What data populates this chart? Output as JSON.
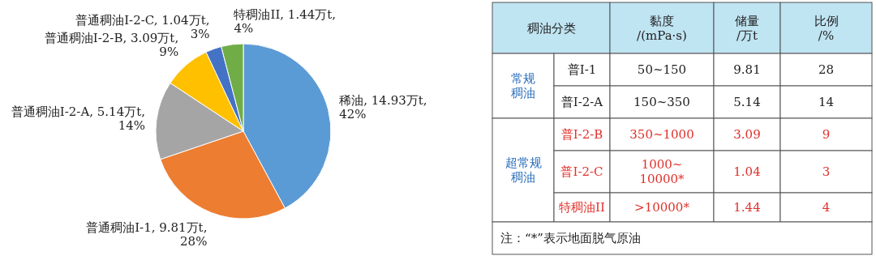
{
  "chart_data": [
    {
      "type": "pie",
      "categories": [
        "稀油",
        "普通稠油I-2-A",
        "普通稠油I-1",
        "普通稠油I-2-B",
        "普通稠油I-2-C",
        "特稠油II"
      ],
      "values": [
        14.93,
        5.14,
        9.81,
        3.09,
        1.04,
        1.44
      ],
      "value_labels": [
        ", 14.93万t, 42%",
        ", 5.14万t, 14%",
        ", 9.81万t, 28%",
        ", 3.09万t, 9%",
        ", 1.04万t, 3%",
        ", 1.44万t, 4%"
      ],
      "colors": [
        "#5b9bd5",
        "#a5a5a5",
        "#ed7d31",
        "#ffc000",
        "#4472c4",
        "#70ad47"
      ]
    },
    {
      "type": "other",
      "annotations": [
        "稠油分类",
        "黏度\n/(mPa·s)",
        "储量\n/万t",
        "比例\n/%",
        "常规稠油",
        "普I-1",
        "50~150",
        "9.81",
        "28",
        "普I-2-A",
        "150~350",
        "5.14",
        "14",
        "超常规稠油",
        "普I-2-B",
        "350~1000",
        "3.09",
        "9",
        "普I-2-C",
        "1000~\n10000*",
        "1.04",
        "3",
        "特稠油II",
        ">10000*",
        "1.44",
        "4",
        "注：“*”表示地面脱气原油"
      ]
    }
  ]
}
